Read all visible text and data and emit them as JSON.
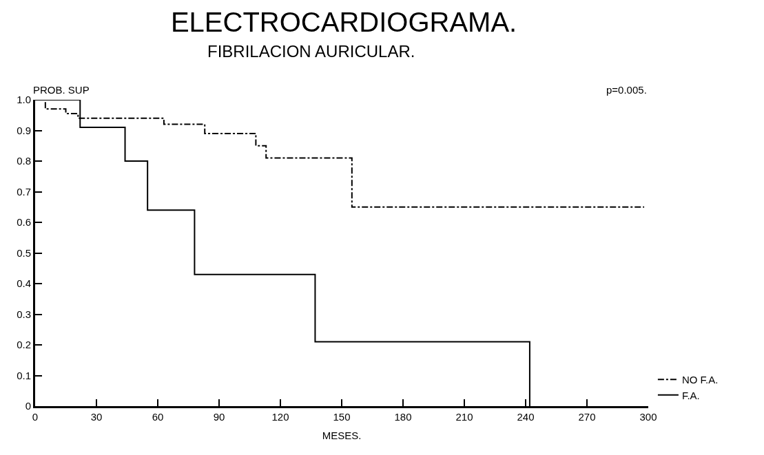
{
  "chart_data": {
    "type": "step",
    "title": "ELECTROCARDIOGRAMA.",
    "subtitle": "FIBRILACION AURICULAR.",
    "xlabel": "MESES.",
    "ylabel": "PROB. SUP",
    "annotations": [
      "p=0.005."
    ],
    "series": [
      {
        "name": "NO F.A.",
        "color": "#000000",
        "line_style": "dashdot",
        "x": [
          0,
          5,
          15,
          21,
          63,
          83,
          108,
          113,
          155,
          298
        ],
        "values": [
          1.0,
          0.97,
          0.955,
          0.94,
          0.92,
          0.89,
          0.85,
          0.81,
          0.65,
          0.65
        ]
      },
      {
        "name": "F.A.",
        "color": "#000000",
        "line_style": "solid",
        "x": [
          0,
          22,
          44,
          55,
          78,
          137,
          242,
          242
        ],
        "values": [
          1.0,
          0.91,
          0.8,
          0.64,
          0.43,
          0.21,
          0.0,
          0.0
        ]
      }
    ],
    "xlim": [
      0,
      300
    ],
    "xticks": [
      0,
      30,
      60,
      90,
      120,
      150,
      180,
      210,
      240,
      270,
      300
    ],
    "ylim": [
      0,
      1.0
    ],
    "yticks": [
      0,
      0.1,
      0.2,
      0.3,
      0.4,
      0.5,
      0.6,
      0.7,
      0.8,
      0.9,
      {
        "value": 1.0,
        "label": "1.0"
      }
    ],
    "legend": "bottom right"
  }
}
